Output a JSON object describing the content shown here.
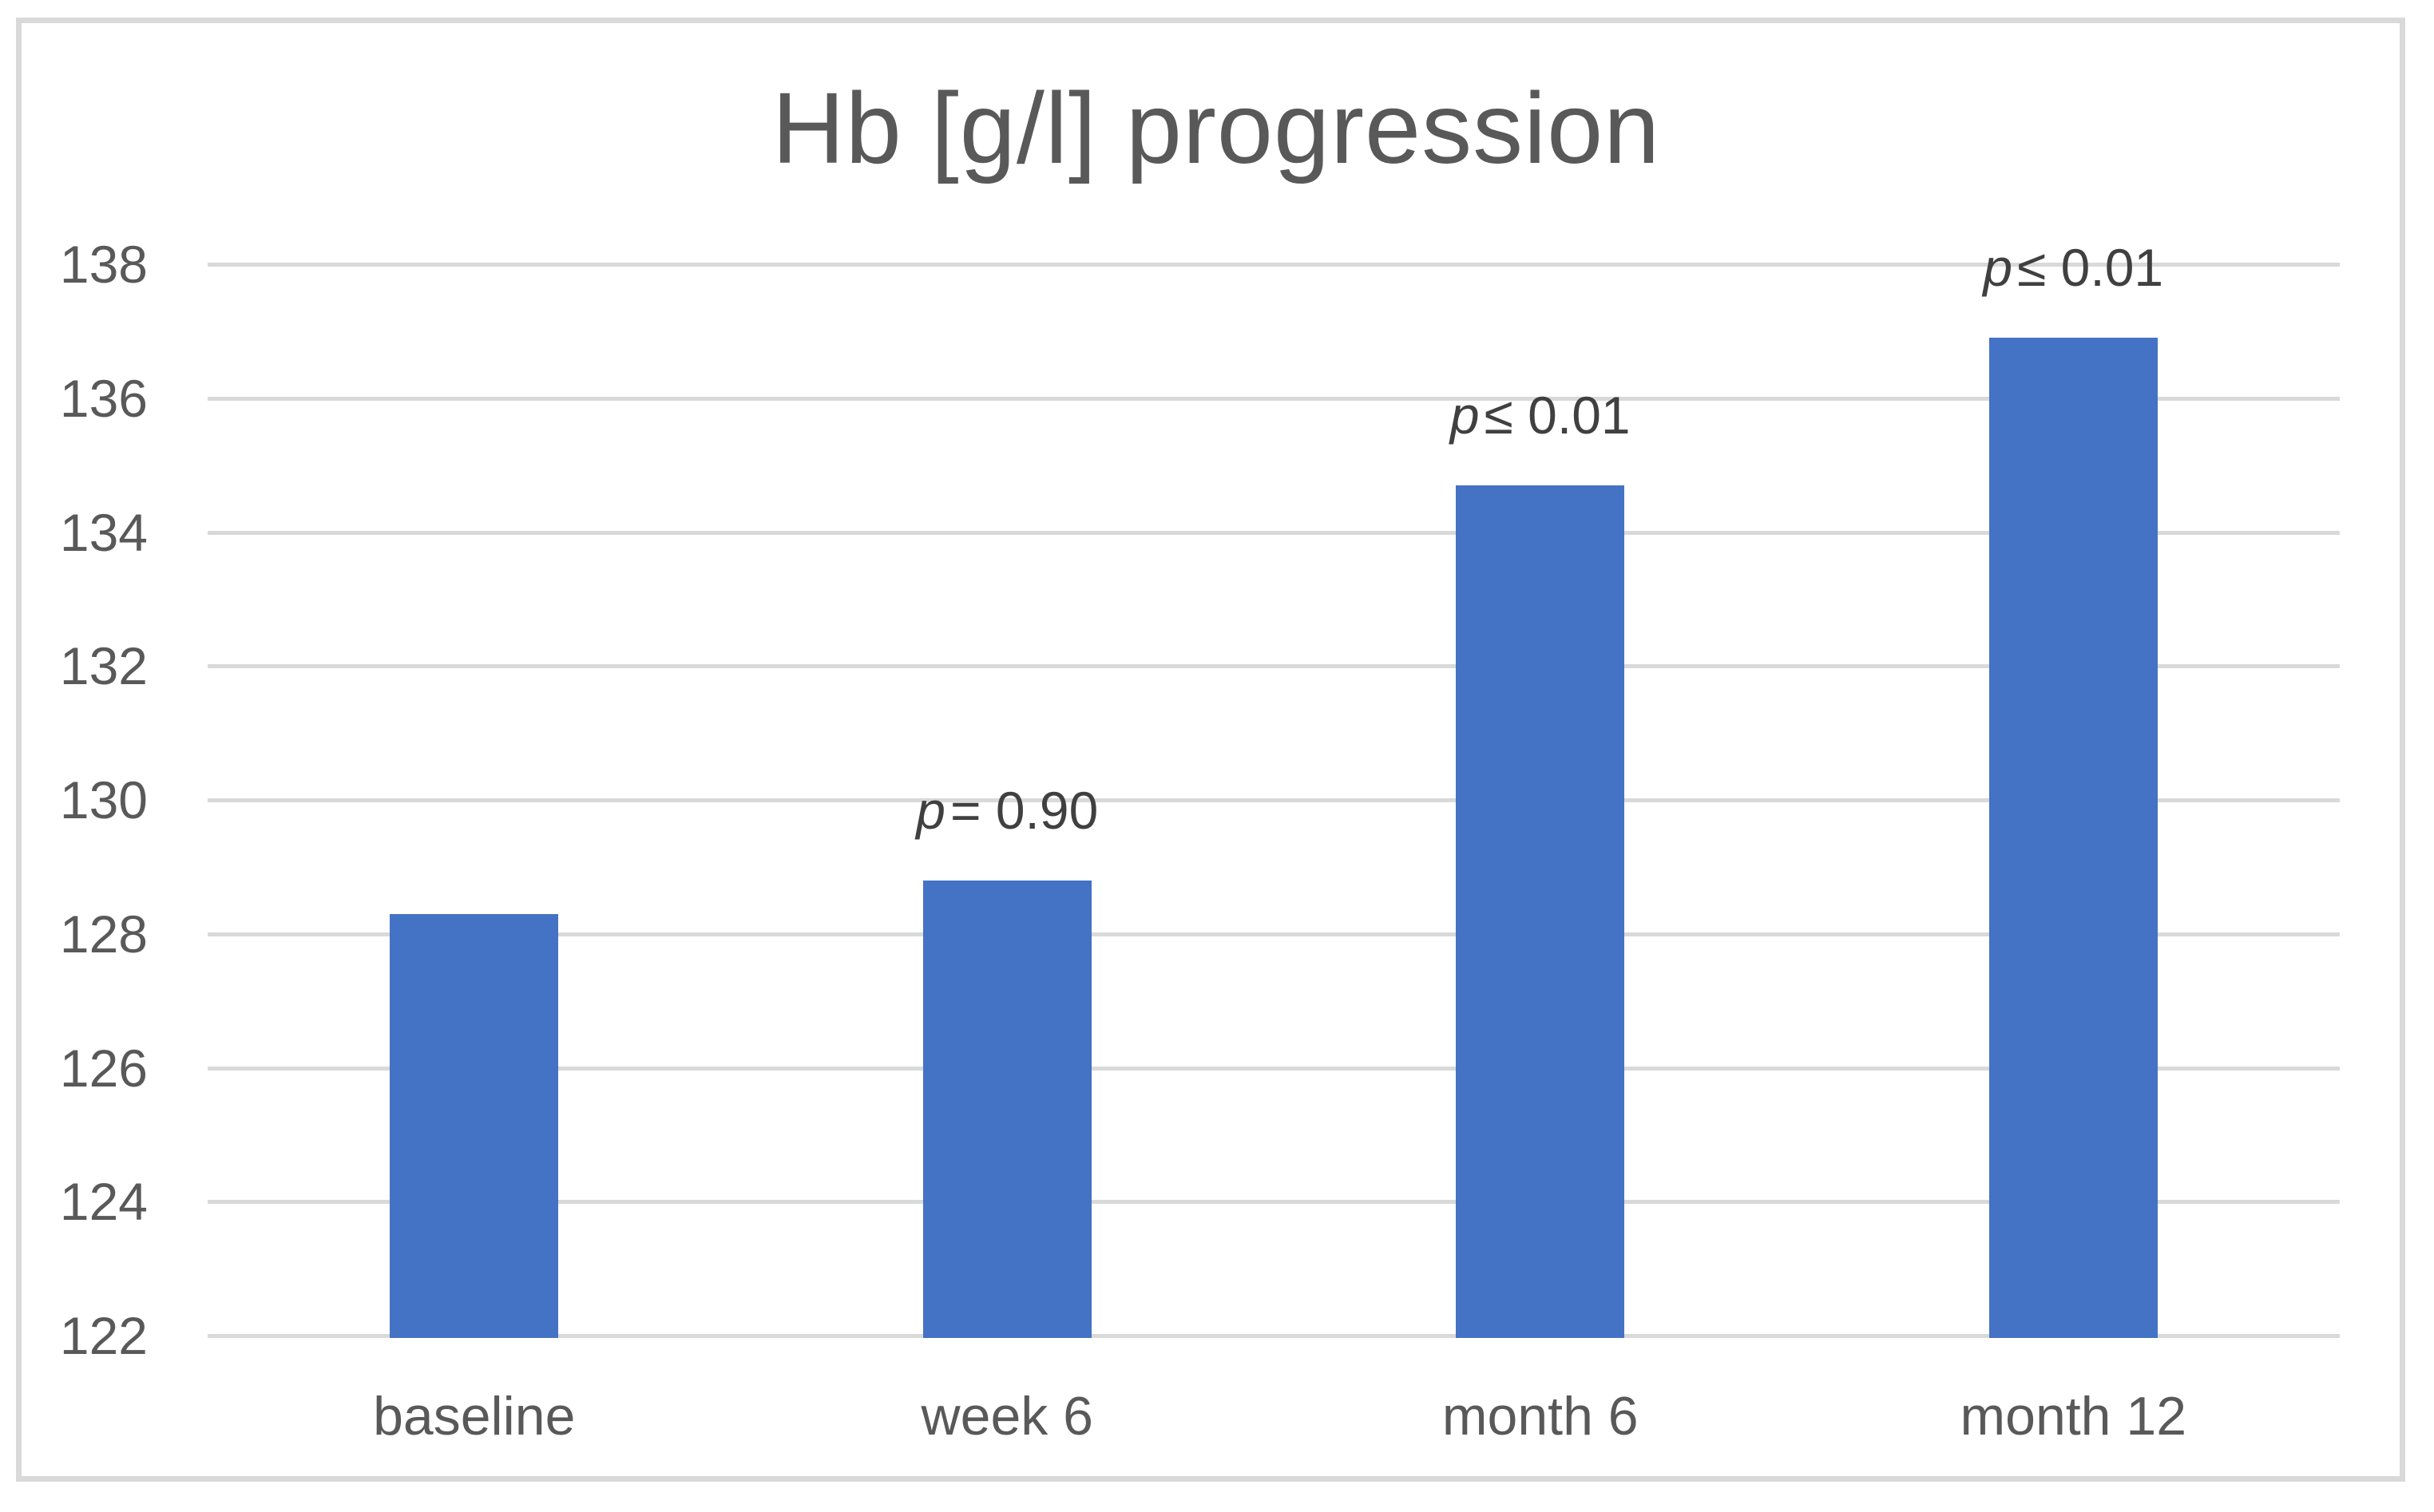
{
  "chart_data": {
    "type": "bar",
    "title": "Hb [g/l] progression",
    "categories": [
      "baseline",
      "week 6",
      "month 6",
      "month 12"
    ],
    "values": [
      128.3,
      128.8,
      134.7,
      136.9
    ],
    "yticks": [
      122,
      124,
      126,
      128,
      130,
      132,
      134,
      136,
      138
    ],
    "ylim": [
      122,
      138
    ],
    "xlabel": "",
    "ylabel": "",
    "grid": true,
    "legend": false,
    "annotations": [
      {
        "category": "week 6",
        "label": "p = 0.90"
      },
      {
        "category": "month 6",
        "label": "p ≤ 0.01"
      },
      {
        "category": "month 12",
        "label": "p ≤ 0.01"
      }
    ],
    "colors": {
      "bar": "#4472C4",
      "gridline": "#D9D9D9",
      "frame_border": "#D9D9D9",
      "axis_text": "#595959",
      "title_text": "#595959",
      "annotation_text": "#404040",
      "background": "#FFFFFF"
    }
  }
}
